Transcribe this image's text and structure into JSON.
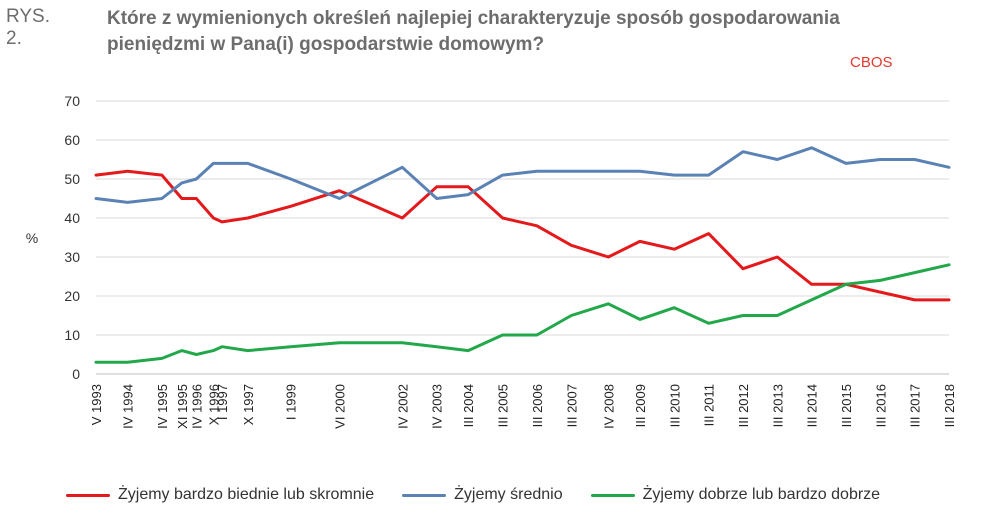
{
  "header": {
    "figure_label": "RYS. 2.",
    "title": "Które z wymienionych określeń najlepiej charakteryzuje sposób gospodarowania pieniędzmi w Pana(i) gospodarstwie domowym?",
    "source": "CBOS"
  },
  "colors": {
    "red": "#e3191c",
    "blue": "#5b82b4",
    "green": "#22a84a",
    "grid": "#d9d9d9",
    "text": "#333333"
  },
  "chart_data": {
    "type": "line",
    "ylabel": "%",
    "ylim": [
      0,
      70
    ],
    "yticks": [
      0,
      10,
      20,
      30,
      40,
      50,
      60,
      70
    ],
    "grid": true,
    "legend_position": "bottom",
    "x": [
      "V 1993",
      "IV 1994",
      "IV 1995",
      "XI 1995",
      "IV 1996",
      "X 1996",
      "I 1997",
      "X 1997",
      "I 1999",
      "VI 2000",
      "IV 2002",
      "IV 2003",
      "III 2004",
      "III 2005",
      "III 2006",
      "III 2007",
      "IV 2008",
      "III 2009",
      "III 2010",
      "III 2011",
      "III 2012",
      "III 2013",
      "III 2014",
      "III 2015",
      "III 2016",
      "III 2017",
      "III 2018"
    ],
    "x_time": [
      1993.33,
      1994.25,
      1995.25,
      1995.83,
      1996.25,
      1996.75,
      1997.0,
      1997.75,
      1999.0,
      2000.42,
      2002.25,
      2003.25,
      2004.17,
      2005.17,
      2006.17,
      2007.17,
      2008.25,
      2009.17,
      2010.17,
      2011.17,
      2012.17,
      2013.17,
      2014.17,
      2015.17,
      2016.17,
      2017.17,
      2018.17
    ],
    "series": [
      {
        "name": "Żyjemy bardzo biednie lub skromnie",
        "color": "#e3191c",
        "values": [
          51,
          52,
          51,
          45,
          45,
          40,
          39,
          40,
          43,
          47,
          40,
          48,
          48,
          40,
          38,
          33,
          30,
          34,
          32,
          36,
          27,
          30,
          23,
          23,
          21,
          19,
          19
        ]
      },
      {
        "name": "Żyjemy średnio",
        "color": "#5b82b4",
        "values": [
          45,
          44,
          45,
          49,
          50,
          54,
          54,
          54,
          50,
          45,
          53,
          45,
          46,
          51,
          52,
          52,
          52,
          52,
          51,
          51,
          57,
          55,
          58,
          54,
          55,
          55,
          53
        ]
      },
      {
        "name": "Żyjemy dobrze lub bardzo dobrze",
        "color": "#22a84a",
        "values": [
          3,
          3,
          4,
          6,
          5,
          6,
          7,
          6,
          7,
          8,
          8,
          7,
          6,
          10,
          10,
          15,
          18,
          14,
          17,
          13,
          15,
          15,
          19,
          23,
          24,
          26,
          28
        ]
      }
    ]
  }
}
